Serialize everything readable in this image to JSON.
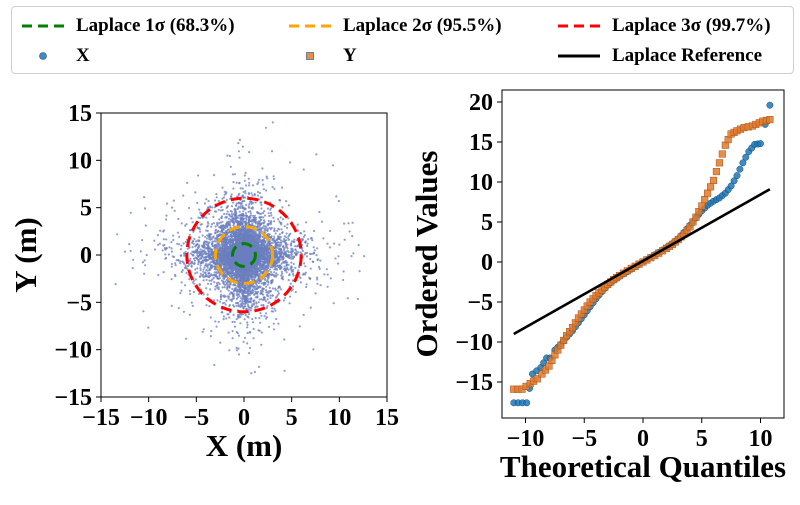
{
  "legend": {
    "items": [
      {
        "label": "Laplace 1σ (68.3%)",
        "kind": "dashed",
        "color": "#008000"
      },
      {
        "label": "Laplace 2σ (95.5%)",
        "kind": "dashed",
        "color": "#FFA500"
      },
      {
        "label": "Laplace 3σ (99.7%)",
        "kind": "dashed",
        "color": "#FF0000"
      },
      {
        "label": "X",
        "kind": "circle",
        "color": "#1F77B4"
      },
      {
        "label": "Y",
        "kind": "square",
        "color": "#E07A2A"
      },
      {
        "label": "Laplace Reference",
        "kind": "solid",
        "color": "#000000"
      }
    ]
  },
  "chart_data": [
    {
      "type": "scatter",
      "xlabel": "X (m)",
      "ylabel": "Y (m)",
      "xlim": [
        -15,
        15
      ],
      "ylim": [
        -15,
        15
      ],
      "xticks": [
        -15,
        -10,
        -5,
        0,
        5,
        10,
        15
      ],
      "yticks": [
        -15,
        -10,
        -5,
        0,
        5,
        10
      ],
      "ytick_labels_extra": [
        15
      ],
      "point_color": "#6B7FBF",
      "point_count_approx": 6000,
      "distribution": "laplace",
      "center": [
        0,
        0
      ],
      "circles": [
        {
          "label": "Laplace 1σ (68.3%)",
          "radius": 1.2,
          "color": "#008000"
        },
        {
          "label": "Laplace 2σ (95.5%)",
          "radius": 3.0,
          "color": "#FFA500"
        },
        {
          "label": "Laplace 3σ (99.7%)",
          "radius": 6.0,
          "color": "#FF0000"
        }
      ],
      "grid": false
    },
    {
      "type": "scatter",
      "xlabel": "Theoretical Quantiles",
      "ylabel": "Ordered Values",
      "xlim": [
        -12,
        12
      ],
      "ylim": [
        -19.5,
        21.5
      ],
      "xticks": [
        -10,
        -5,
        0,
        5,
        10
      ],
      "yticks": [
        -15,
        -10,
        -5,
        0,
        5,
        10,
        15,
        20
      ],
      "series": [
        {
          "name": "X",
          "marker": "circle",
          "color": "#1F77B4",
          "points": [
            [
              -11.0,
              -17.6
            ],
            [
              -9.9,
              -17.6
            ],
            [
              -9.4,
              -14.0
            ],
            [
              -8.7,
              -13.2
            ],
            [
              -8.2,
              -12.0
            ],
            [
              -7.9,
              -12.0
            ],
            [
              -7.5,
              -11.0
            ],
            [
              -7.0,
              -10.3
            ],
            [
              -6.5,
              -9.4
            ],
            [
              -6.0,
              -8.6
            ],
            [
              -5.5,
              -7.6
            ],
            [
              -5.0,
              -6.6
            ],
            [
              -4.5,
              -5.6
            ],
            [
              -4.0,
              -4.6
            ],
            [
              -3.5,
              -3.7
            ],
            [
              -3.0,
              -2.9
            ],
            [
              -2.5,
              -2.3
            ],
            [
              -2.0,
              -1.8
            ],
            [
              -1.0,
              -0.9
            ],
            [
              0,
              0
            ],
            [
              1.0,
              0.9
            ],
            [
              2.0,
              1.8
            ],
            [
              2.5,
              2.3
            ],
            [
              3.0,
              2.9
            ],
            [
              3.5,
              3.7
            ],
            [
              4.0,
              4.6
            ],
            [
              4.5,
              5.5
            ],
            [
              5.0,
              6.4
            ],
            [
              5.5,
              7.1
            ],
            [
              6.0,
              7.6
            ],
            [
              6.5,
              8.0
            ],
            [
              7.0,
              8.6
            ],
            [
              7.5,
              9.5
            ],
            [
              8.0,
              10.8
            ],
            [
              8.5,
              12.4
            ],
            [
              9.0,
              13.8
            ],
            [
              9.5,
              14.7
            ],
            [
              10.0,
              14.8
            ],
            [
              10.8,
              19.6
            ]
          ]
        },
        {
          "name": "Y",
          "marker": "square",
          "color": "#E07A2A",
          "points": [
            [
              -11.0,
              -15.9
            ],
            [
              -10.3,
              -15.9
            ],
            [
              -9.6,
              -15.2
            ],
            [
              -9.0,
              -14.6
            ],
            [
              -8.6,
              -14.0
            ],
            [
              -8.0,
              -13.0
            ],
            [
              -7.5,
              -11.6
            ],
            [
              -7.0,
              -10.4
            ],
            [
              -6.5,
              -9.2
            ],
            [
              -6.0,
              -8.2
            ],
            [
              -5.5,
              -7.0
            ],
            [
              -5.0,
              -6.0
            ],
            [
              -4.5,
              -5.0
            ],
            [
              -4.0,
              -4.2
            ],
            [
              -3.5,
              -3.5
            ],
            [
              -3.0,
              -2.8
            ],
            [
              -2.5,
              -2.2
            ],
            [
              -2.0,
              -1.7
            ],
            [
              -1.0,
              -0.8
            ],
            [
              0,
              0
            ],
            [
              1.0,
              0.8
            ],
            [
              2.0,
              1.7
            ],
            [
              2.5,
              2.2
            ],
            [
              3.0,
              2.8
            ],
            [
              3.5,
              3.5
            ],
            [
              4.0,
              4.4
            ],
            [
              4.5,
              5.6
            ],
            [
              5.0,
              7.0
            ],
            [
              5.5,
              8.6
            ],
            [
              6.0,
              10.2
            ],
            [
              6.5,
              12.4
            ],
            [
              7.0,
              14.6
            ],
            [
              7.5,
              16.0
            ],
            [
              8.0,
              16.4
            ],
            [
              8.6,
              16.8
            ],
            [
              9.3,
              17.0
            ],
            [
              10.2,
              17.6
            ],
            [
              10.8,
              17.8
            ]
          ]
        },
        {
          "name": "Laplace Reference",
          "marker": "line",
          "color": "#000000",
          "points": [
            [
              -11.0,
              -9.0
            ],
            [
              10.8,
              9.1
            ]
          ]
        }
      ],
      "grid": false
    }
  ]
}
